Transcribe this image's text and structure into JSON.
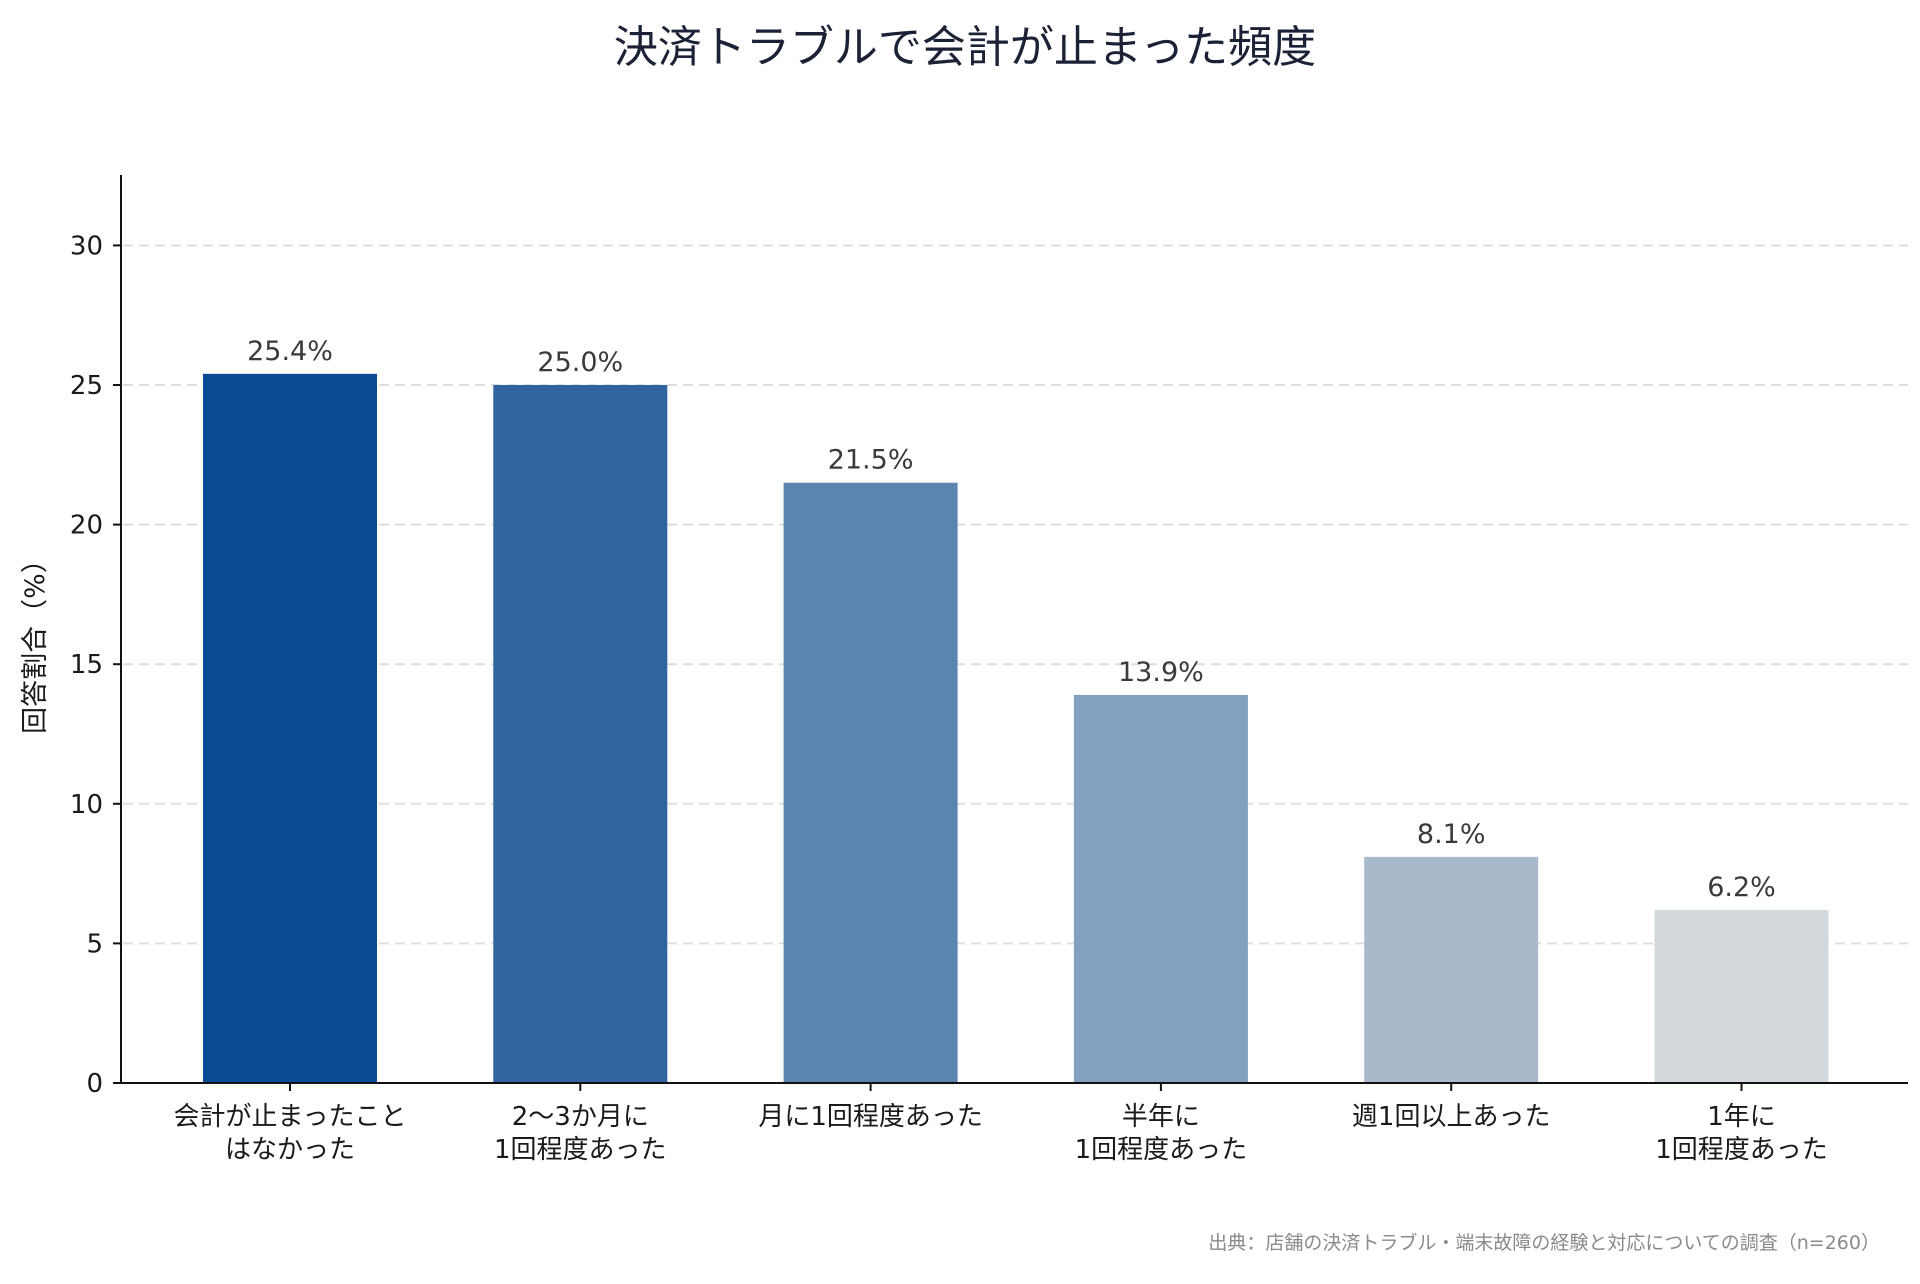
{
  "chart_data": {
    "type": "bar",
    "title": "決済トラブルで会計が止まった頻度",
    "ylabel": "回答割合（%）",
    "xlabel": "",
    "ylim": [
      0,
      32.5
    ],
    "yticks": [
      0,
      5,
      10,
      15,
      20,
      25,
      30
    ],
    "grid": true,
    "legend": "none",
    "categories": [
      [
        "会計が止まったこと",
        "はなかった"
      ],
      [
        "2〜3か月に",
        "1回程度あった"
      ],
      [
        "月に1回程度あった"
      ],
      [
        "半年に",
        "1回程度あった"
      ],
      [
        "週1回以上あった"
      ],
      [
        "1年に",
        "1回程度あった"
      ]
    ],
    "values": [
      25.4,
      25.0,
      21.5,
      13.9,
      8.1,
      6.2
    ],
    "data_labels": [
      "25.4%",
      "25.0%",
      "21.5%",
      "13.9%",
      "8.1%",
      "6.2%"
    ],
    "colors": [
      "#0b4a94",
      "#2f64a0",
      "#5b84b0",
      "#82a0bf",
      "#a9b9cc",
      "#d3d8dc"
    ],
    "source": "出典：店舗の決済トラブル・端末故障の経験と対応についての調査（n=260）"
  }
}
